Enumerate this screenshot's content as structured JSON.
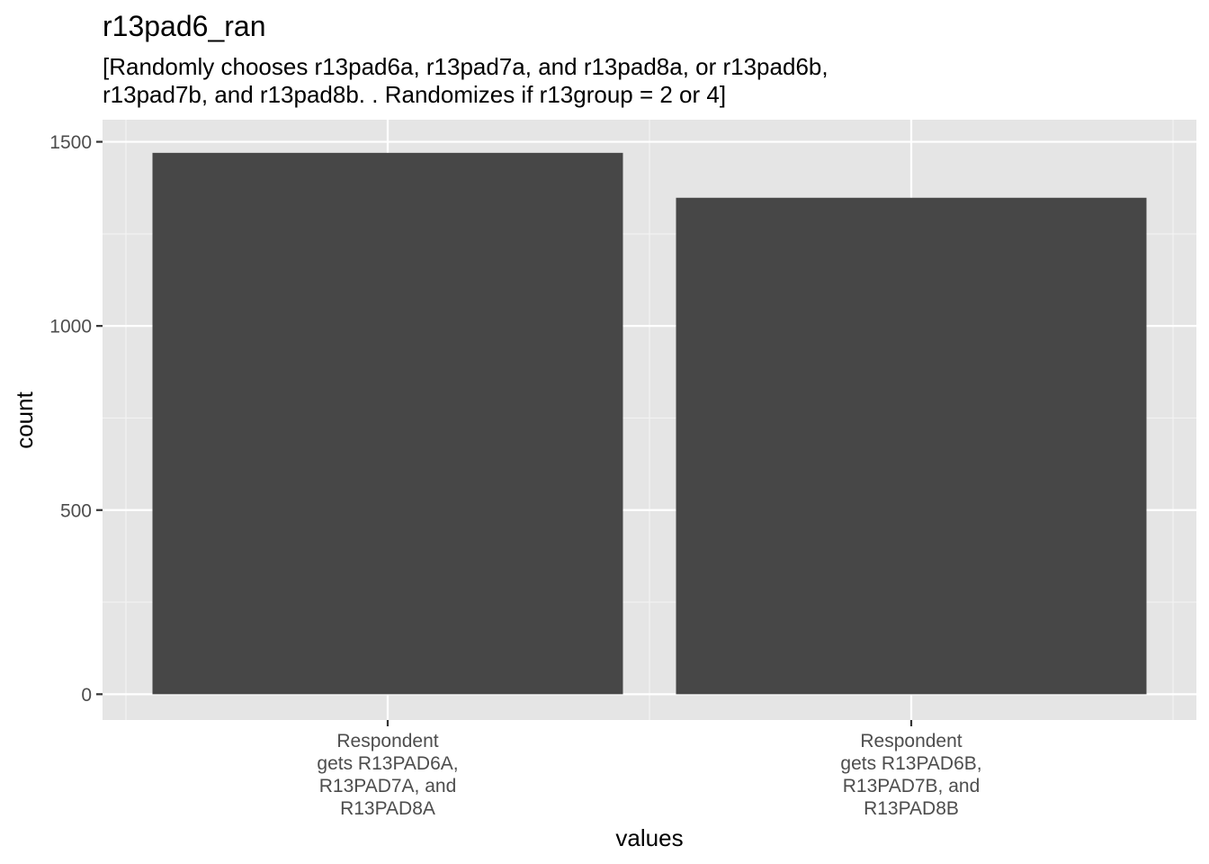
{
  "chart_data": {
    "type": "bar",
    "title": "r13pad6_ran",
    "subtitle_lines": [
      "[Randomly chooses r13pad6a, r13pad7a, and r13pad8a, or r13pad6b,",
      "r13pad7b, and r13pad8b. . Randomizes if r13group = 2 or 4]"
    ],
    "xlabel": "values",
    "ylabel": "count",
    "categories": [
      [
        "Respondent",
        "gets R13PAD6A,",
        "R13PAD7A, and",
        "R13PAD8A"
      ],
      [
        "Respondent",
        "gets R13PAD6B,",
        "R13PAD7B, and",
        "R13PAD8B"
      ]
    ],
    "values": [
      1470,
      1348
    ],
    "ylim": [
      -70,
      1560
    ],
    "yticks": [
      0,
      500,
      1000,
      1500
    ],
    "ytick_labels": [
      "0",
      "500",
      "1000",
      "1500"
    ],
    "grid": true,
    "colors": {
      "panel_background": "#e5e5e5",
      "grid_major": "#ffffff",
      "grid_minor": "#f2f2f2",
      "bar_fill": "#474747",
      "tick_mark": "#333333"
    }
  }
}
